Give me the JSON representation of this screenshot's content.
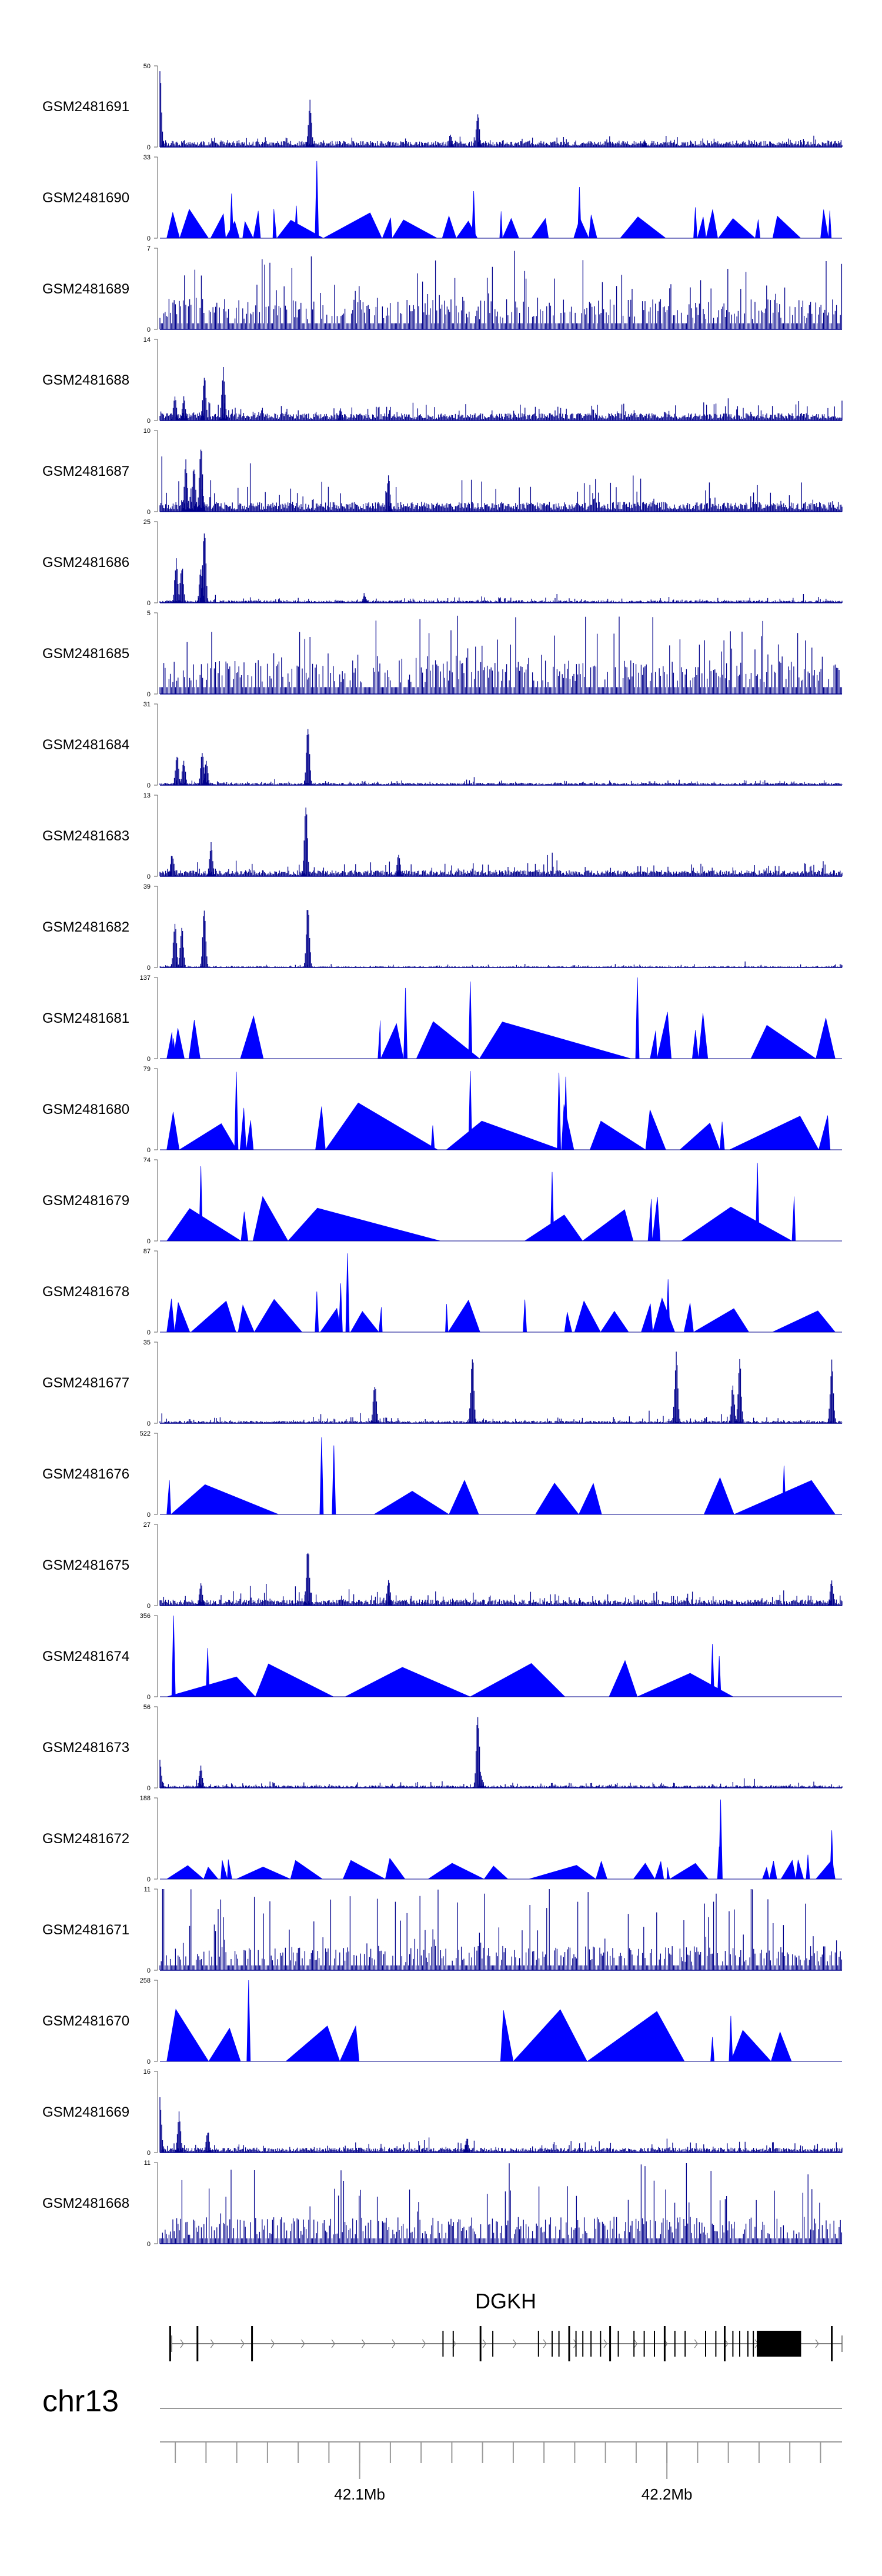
{
  "chart_data": {
    "type": "area",
    "title": "",
    "chromosome": "chr13",
    "gene": "DGKH",
    "x_axis": {
      "range_mb": [
        42.035,
        42.257
      ],
      "tick_labels": [
        {
          "value": 42.1,
          "label": "42.1Mb"
        },
        {
          "value": 42.2,
          "label": "42.2Mb"
        }
      ]
    },
    "style": {
      "fill_color": "#0000ff",
      "line_color": "#00008b",
      "gene_color": "#000000"
    },
    "tracks": [
      {
        "name": "GSM2481691",
        "ymax": 50,
        "ylim": [
          0,
          50
        ],
        "pattern": "dense",
        "base": 0.05,
        "noise": 0.06,
        "seed": 11,
        "peaks": [
          [
            0.0,
            1.0
          ],
          [
            0.22,
            0.6
          ],
          [
            0.466,
            0.45
          ],
          [
            0.426,
            0.18
          ],
          [
            0.71,
            0.1
          ]
        ]
      },
      {
        "name": "GSM2481690",
        "ymax": 33,
        "ylim": [
          0,
          33
        ],
        "pattern": "triangles",
        "tri_h": 0.28,
        "segments": 44,
        "seed": 12,
        "spikes": [
          [
            0.23,
            0.95
          ],
          [
            0.615,
            0.63
          ],
          [
            0.46,
            0.58
          ],
          [
            0.785,
            0.38
          ],
          [
            0.105,
            0.55
          ],
          [
            0.2,
            0.4
          ]
        ]
      },
      {
        "name": "GSM2481689",
        "ymax": 7,
        "ylim": [
          0,
          7
        ],
        "pattern": "sparse",
        "base": 0.25,
        "noise": 0.55,
        "seed": 13,
        "peaks": []
      },
      {
        "name": "GSM2481688",
        "ymax": 14,
        "ylim": [
          0,
          14
        ],
        "pattern": "dense",
        "base": 0.06,
        "noise": 0.16,
        "seed": 14,
        "peaks": [
          [
            0.065,
            0.6
          ],
          [
            0.093,
            0.7
          ],
          [
            0.022,
            0.35
          ],
          [
            0.035,
            0.3
          ],
          [
            0.265,
            0.15
          ]
        ]
      },
      {
        "name": "GSM2481687",
        "ymax": 10,
        "ylim": [
          0,
          10
        ],
        "pattern": "dense",
        "base": 0.08,
        "noise": 0.32,
        "seed": 15,
        "peaks": [
          [
            0.06,
            0.9
          ],
          [
            0.038,
            0.7
          ],
          [
            0.335,
            0.5
          ],
          [
            0.05,
            0.6
          ]
        ]
      },
      {
        "name": "GSM2481686",
        "ymax": 25,
        "ylim": [
          0,
          25
        ],
        "pattern": "dense",
        "base": 0.02,
        "noise": 0.05,
        "seed": 16,
        "peaks": [
          [
            0.065,
            0.95
          ],
          [
            0.024,
            0.55
          ],
          [
            0.032,
            0.5
          ],
          [
            0.06,
            0.45
          ],
          [
            0.3,
            0.1
          ]
        ]
      },
      {
        "name": "GSM2481685",
        "ymax": 5,
        "ylim": [
          0,
          5
        ],
        "pattern": "sparse",
        "base": 0.28,
        "noise": 0.5,
        "seed": 17,
        "peaks": []
      },
      {
        "name": "GSM2481684",
        "ymax": 31,
        "ylim": [
          0,
          31
        ],
        "pattern": "dense",
        "base": 0.02,
        "noise": 0.04,
        "seed": 18,
        "peaks": [
          [
            0.217,
            0.85
          ],
          [
            0.025,
            0.4
          ],
          [
            0.035,
            0.35
          ],
          [
            0.062,
            0.45
          ],
          [
            0.068,
            0.3
          ]
        ]
      },
      {
        "name": "GSM2481683",
        "ymax": 13,
        "ylim": [
          0,
          13
        ],
        "pattern": "dense",
        "base": 0.05,
        "noise": 0.14,
        "seed": 19,
        "peaks": [
          [
            0.214,
            0.95
          ],
          [
            0.075,
            0.45
          ],
          [
            0.018,
            0.3
          ],
          [
            0.35,
            0.3
          ]
        ]
      },
      {
        "name": "GSM2481682",
        "ymax": 39,
        "ylim": [
          0,
          39
        ],
        "pattern": "dense",
        "base": 0.01,
        "noise": 0.03,
        "seed": 20,
        "peaks": [
          [
            0.217,
            0.85
          ],
          [
            0.065,
            0.75
          ],
          [
            0.022,
            0.6
          ],
          [
            0.032,
            0.55
          ]
        ]
      },
      {
        "name": "GSM2481681",
        "ymax": 137,
        "ylim": [
          0,
          137
        ],
        "pattern": "triangles",
        "tri_h": 0.45,
        "segments": 22,
        "seed": 21,
        "spikes": [
          [
            0.455,
            0.95
          ],
          [
            0.36,
            0.87
          ],
          [
            0.7,
            1.0
          ],
          [
            0.02,
            0.25
          ]
        ]
      },
      {
        "name": "GSM2481680",
        "ymax": 79,
        "ylim": [
          0,
          79
        ],
        "pattern": "triangles",
        "tri_h": 0.45,
        "segments": 20,
        "seed": 22,
        "spikes": [
          [
            0.585,
            0.95
          ],
          [
            0.595,
            0.9
          ],
          [
            0.112,
            0.96
          ],
          [
            0.455,
            0.97
          ],
          [
            0.4,
            0.3
          ]
        ]
      },
      {
        "name": "GSM2481679",
        "ymax": 74,
        "ylim": [
          0,
          74
        ],
        "pattern": "triangles",
        "tri_h": 0.45,
        "segments": 14,
        "seed": 23,
        "spikes": [
          [
            0.06,
            0.92
          ],
          [
            0.575,
            0.85
          ],
          [
            0.876,
            0.96
          ]
        ]
      },
      {
        "name": "GSM2481678",
        "ymax": 87,
        "ylim": [
          0,
          87
        ],
        "pattern": "triangles",
        "tri_h": 0.35,
        "segments": 30,
        "seed": 24,
        "spikes": [
          [
            0.275,
            0.97
          ],
          [
            0.265,
            0.6
          ],
          [
            0.745,
            0.65
          ],
          [
            0.535,
            0.4
          ],
          [
            0.23,
            0.5
          ]
        ]
      },
      {
        "name": "GSM2481677",
        "ymax": 35,
        "ylim": [
          0,
          35
        ],
        "pattern": "dense",
        "base": 0.02,
        "noise": 0.06,
        "seed": 25,
        "peaks": [
          [
            0.458,
            0.9
          ],
          [
            0.757,
            0.95
          ],
          [
            0.985,
            0.85
          ],
          [
            0.85,
            0.8
          ],
          [
            0.315,
            0.55
          ],
          [
            0.84,
            0.5
          ]
        ]
      },
      {
        "name": "GSM2481676",
        "ymax": 522,
        "ylim": [
          0,
          522
        ],
        "pattern": "triangles",
        "tri_h": 0.35,
        "segments": 10,
        "seed": 26,
        "spikes": [
          [
            0.237,
            0.95
          ],
          [
            0.255,
            0.85
          ],
          [
            0.915,
            0.6
          ]
        ]
      },
      {
        "name": "GSM2481675",
        "ymax": 27,
        "ylim": [
          0,
          27
        ],
        "pattern": "dense",
        "base": 0.05,
        "noise": 0.12,
        "seed": 27,
        "peaks": [
          [
            0.217,
            0.8
          ],
          [
            0.335,
            0.35
          ],
          [
            0.06,
            0.3
          ],
          [
            0.985,
            0.35
          ]
        ]
      },
      {
        "name": "GSM2481674",
        "ymax": 356,
        "ylim": [
          0,
          356
        ],
        "pattern": "triangles",
        "tri_h": 0.35,
        "segments": 8,
        "seed": 28,
        "spikes": [
          [
            0.02,
            1.0
          ],
          [
            0.07,
            0.6
          ],
          [
            0.81,
            0.65
          ],
          [
            0.82,
            0.5
          ]
        ]
      },
      {
        "name": "GSM2481673",
        "ymax": 56,
        "ylim": [
          0,
          56
        ],
        "pattern": "dense",
        "base": 0.02,
        "noise": 0.05,
        "seed": 29,
        "peaks": [
          [
            0.466,
            1.0
          ],
          [
            0.06,
            0.3
          ],
          [
            0.0,
            0.35
          ],
          [
            0.47,
            0.2
          ]
        ]
      },
      {
        "name": "GSM2481672",
        "ymax": 188,
        "ylim": [
          0,
          188
        ],
        "pattern": "triangles",
        "tri_h": 0.2,
        "segments": 36,
        "seed": 30,
        "spikes": [
          [
            0.822,
            0.98
          ],
          [
            0.985,
            0.6
          ],
          [
            0.82,
            0.4
          ],
          [
            0.95,
            0.3
          ]
        ]
      },
      {
        "name": "GSM2481671",
        "ymax": 11,
        "ylim": [
          0,
          11
        ],
        "pattern": "sparse",
        "base": 0.2,
        "noise": 0.65,
        "seed": 31,
        "peaks": []
      },
      {
        "name": "GSM2481670",
        "ymax": 258,
        "ylim": [
          0,
          258
        ],
        "pattern": "triangles",
        "tri_h": 0.5,
        "segments": 14,
        "seed": 32,
        "spikes": [
          [
            0.13,
            1.0
          ],
          [
            0.72,
            0.5
          ],
          [
            0.837,
            0.56
          ],
          [
            0.81,
            0.3
          ]
        ]
      },
      {
        "name": "GSM2481669",
        "ymax": 16,
        "ylim": [
          0,
          16
        ],
        "pattern": "dense",
        "base": 0.04,
        "noise": 0.1,
        "seed": 33,
        "peaks": [
          [
            0.028,
            0.55
          ],
          [
            0.0,
            0.7
          ],
          [
            0.07,
            0.3
          ],
          [
            0.45,
            0.2
          ]
        ]
      },
      {
        "name": "GSM2481668",
        "ymax": 11,
        "ylim": [
          0,
          11
        ],
        "pattern": "sparse",
        "base": 0.22,
        "noise": 0.45,
        "seed": 34,
        "peaks": []
      }
    ],
    "gene_model": {
      "exons_frac": [
        0.015,
        0.055,
        0.135,
        0.415,
        0.43,
        0.47,
        0.488,
        0.555,
        0.575,
        0.585,
        0.6,
        0.61,
        0.62,
        0.632,
        0.646,
        0.66,
        0.672,
        0.695,
        0.71,
        0.725,
        0.74,
        0.755,
        0.77,
        0.8,
        0.815,
        0.828,
        0.84,
        0.85,
        0.862,
        0.87,
        0.985
      ],
      "big_exon": [
        0.875,
        0.94
      ],
      "arrow_count": 22
    }
  }
}
